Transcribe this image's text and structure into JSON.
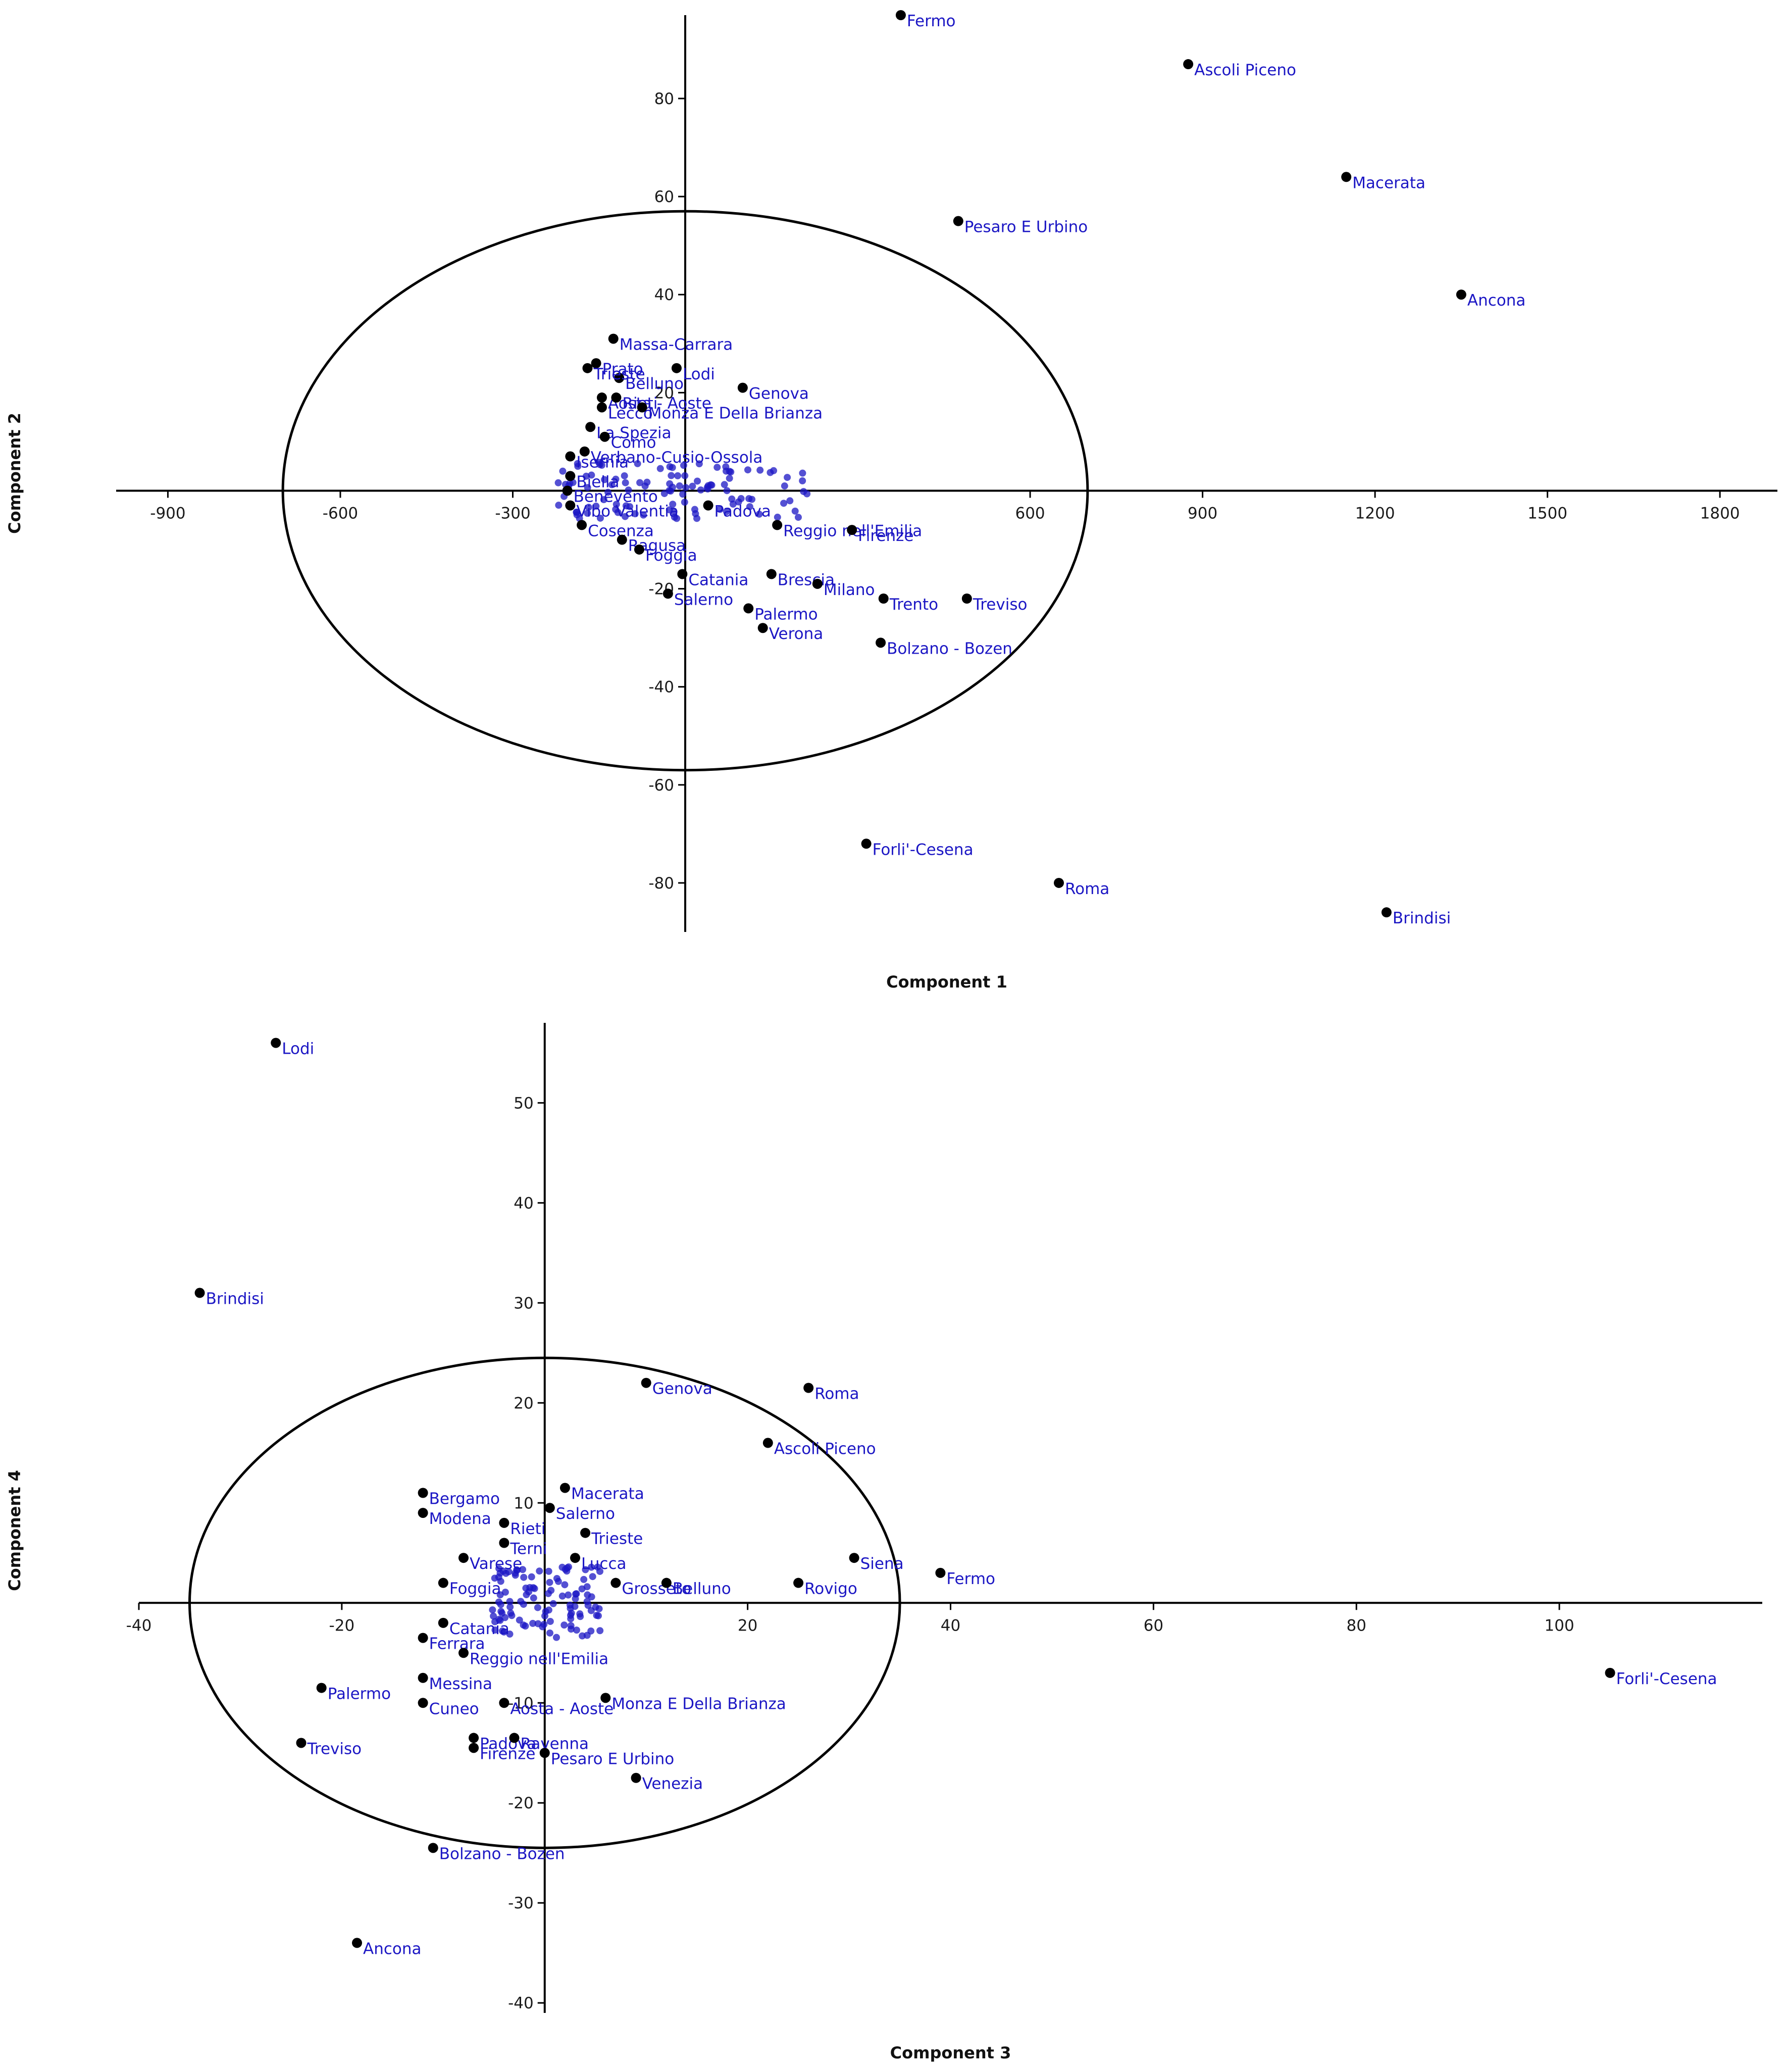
{
  "chart_data": [
    {
      "type": "scatter",
      "xlabel": "Component 1",
      "ylabel": "Component 2",
      "xlim": [
        -990,
        1900
      ],
      "ylim": [
        -90,
        97
      ],
      "xticks": [
        -900,
        -600,
        -300,
        600,
        900,
        1200,
        1500,
        1800
      ],
      "yticks": [
        -80,
        -60,
        -40,
        -20,
        20,
        40,
        60,
        80
      ],
      "ellipse": {
        "cx": 0,
        "cy": 0,
        "rx": 700,
        "ry": 57
      },
      "points": [
        {
          "label": "Fermo",
          "x": 375,
          "y": 97
        },
        {
          "label": "Ascoli Piceno",
          "x": 875,
          "y": 87
        },
        {
          "label": "Macerata",
          "x": 1150,
          "y": 64
        },
        {
          "label": "Pesaro E Urbino",
          "x": 475,
          "y": 55
        },
        {
          "label": "Ancona",
          "x": 1350,
          "y": 40
        },
        {
          "label": "Massa-Carrara",
          "x": -125,
          "y": 31
        },
        {
          "label": "Prato",
          "x": -155,
          "y": 26
        },
        {
          "label": "Belluno",
          "x": -115,
          "y": 23
        },
        {
          "label": "Trieste",
          "x": -170,
          "y": 25
        },
        {
          "label": "Lodi",
          "x": -15,
          "y": 25
        },
        {
          "label": "Aosta - Aoste",
          "x": -145,
          "y": 19
        },
        {
          "label": "Rieti",
          "x": -120,
          "y": 19
        },
        {
          "label": "Genova",
          "x": 100,
          "y": 21
        },
        {
          "label": "Lecco",
          "x": -145,
          "y": 17
        },
        {
          "label": "Monza E Della Brianza",
          "x": -75,
          "y": 17
        },
        {
          "label": "La Spezia",
          "x": -165,
          "y": 13
        },
        {
          "label": "Como",
          "x": -140,
          "y": 11
        },
        {
          "label": "Verbano-Cusio-Ossola",
          "x": -175,
          "y": 8
        },
        {
          "label": "Isernia",
          "x": -200,
          "y": 7
        },
        {
          "label": "Biella",
          "x": -200,
          "y": 3
        },
        {
          "label": "Benevento",
          "x": -205,
          "y": 0
        },
        {
          "label": "Vibo Valentia",
          "x": -200,
          "y": -3
        },
        {
          "label": "Cosenza",
          "x": -180,
          "y": -7
        },
        {
          "label": "Ragusa",
          "x": -110,
          "y": -10
        },
        {
          "label": "Foggia",
          "x": -80,
          "y": -12
        },
        {
          "label": "Padova",
          "x": 40,
          "y": -3
        },
        {
          "label": "Reggio nell'Emilia",
          "x": 160,
          "y": -7
        },
        {
          "label": "Firenze",
          "x": 290,
          "y": -8
        },
        {
          "label": "Catania",
          "x": -5,
          "y": -17
        },
        {
          "label": "Salerno",
          "x": -30,
          "y": -21
        },
        {
          "label": "Brescia",
          "x": 150,
          "y": -17
        },
        {
          "label": "Milano",
          "x": 230,
          "y": -19
        },
        {
          "label": "Trento",
          "x": 345,
          "y": -22
        },
        {
          "label": "Treviso",
          "x": 490,
          "y": -22
        },
        {
          "label": "Palermo",
          "x": 110,
          "y": -24
        },
        {
          "label": "Verona",
          "x": 135,
          "y": -28
        },
        {
          "label": "Bolzano - Bozen",
          "x": 340,
          "y": -31
        },
        {
          "label": "Forli'-Cesena",
          "x": 315,
          "y": -72
        },
        {
          "label": "Roma",
          "x": 650,
          "y": -80
        },
        {
          "label": "Brindisi",
          "x": 1220,
          "y": -86
        }
      ]
    },
    {
      "type": "scatter",
      "xlabel": "Component 3",
      "ylabel": "Component 4",
      "xlim": [
        -40,
        120
      ],
      "ylim": [
        -41,
        58
      ],
      "xticks": [
        -40,
        -20,
        20,
        40,
        60,
        80,
        100
      ],
      "yticks": [
        -40,
        -30,
        -20,
        -10,
        10,
        20,
        30,
        40,
        50
      ],
      "ellipse": {
        "cx": 0,
        "cy": 0,
        "rx": 35,
        "ry": 24.5
      },
      "points": [
        {
          "label": "Lodi",
          "x": -26.5,
          "y": 56
        },
        {
          "label": "Brindisi",
          "x": -34,
          "y": 31
        },
        {
          "label": "Genova",
          "x": 10,
          "y": 22
        },
        {
          "label": "Roma",
          "x": 26,
          "y": 21.5
        },
        {
          "label": "Ascoli Piceno",
          "x": 22,
          "y": 16
        },
        {
          "label": "Bergamo",
          "x": -12,
          "y": 11
        },
        {
          "label": "Macerata",
          "x": 2,
          "y": 11.5
        },
        {
          "label": "Salerno",
          "x": 0.5,
          "y": 9.5
        },
        {
          "label": "Modena",
          "x": -12,
          "y": 9
        },
        {
          "label": "Rieti",
          "x": -4,
          "y": 8
        },
        {
          "label": "Trieste",
          "x": 4,
          "y": 7
        },
        {
          "label": "Terni",
          "x": -4,
          "y": 6
        },
        {
          "label": "Siena",
          "x": 30.5,
          "y": 4.5
        },
        {
          "label": "Varese",
          "x": -8,
          "y": 4.5
        },
        {
          "label": "Lucca",
          "x": 3,
          "y": 4.5
        },
        {
          "label": "Fermo",
          "x": 39,
          "y": 3
        },
        {
          "label": "Foggia",
          "x": -10,
          "y": 2
        },
        {
          "label": "Grosseto",
          "x": 7,
          "y": 2
        },
        {
          "label": "Belluno",
          "x": 12,
          "y": 2
        },
        {
          "label": "Rovigo",
          "x": 25,
          "y": 2
        },
        {
          "label": "Catania",
          "x": -10,
          "y": -2
        },
        {
          "label": "Ferrara",
          "x": -12,
          "y": -3.5
        },
        {
          "label": "Reggio nell'Emilia",
          "x": -8,
          "y": -5
        },
        {
          "label": "Messina",
          "x": -12,
          "y": -7.5
        },
        {
          "label": "Palermo",
          "x": -22,
          "y": -8.5
        },
        {
          "label": "Cuneo",
          "x": -12,
          "y": -10
        },
        {
          "label": "Aosta - Aoste",
          "x": -4,
          "y": -10
        },
        {
          "label": "Monza E Della Brianza",
          "x": 6,
          "y": -9.5
        },
        {
          "label": "Padova",
          "x": -7,
          "y": -13.5
        },
        {
          "label": "Ravenna",
          "x": -3,
          "y": -13.5
        },
        {
          "label": "Treviso",
          "x": -24,
          "y": -14
        },
        {
          "label": "Firenze",
          "x": -7,
          "y": -14.5
        },
        {
          "label": "Pesaro E Urbino",
          "x": 0,
          "y": -15
        },
        {
          "label": "Venezia",
          "x": 9,
          "y": -17.5
        },
        {
          "label": "Bolzano - Bozen",
          "x": -11,
          "y": -24.5
        },
        {
          "label": "Ancona",
          "x": -18.5,
          "y": -34
        },
        {
          "label": "Forli'-Cesena",
          "x": 105,
          "y": -7
        }
      ]
    }
  ]
}
